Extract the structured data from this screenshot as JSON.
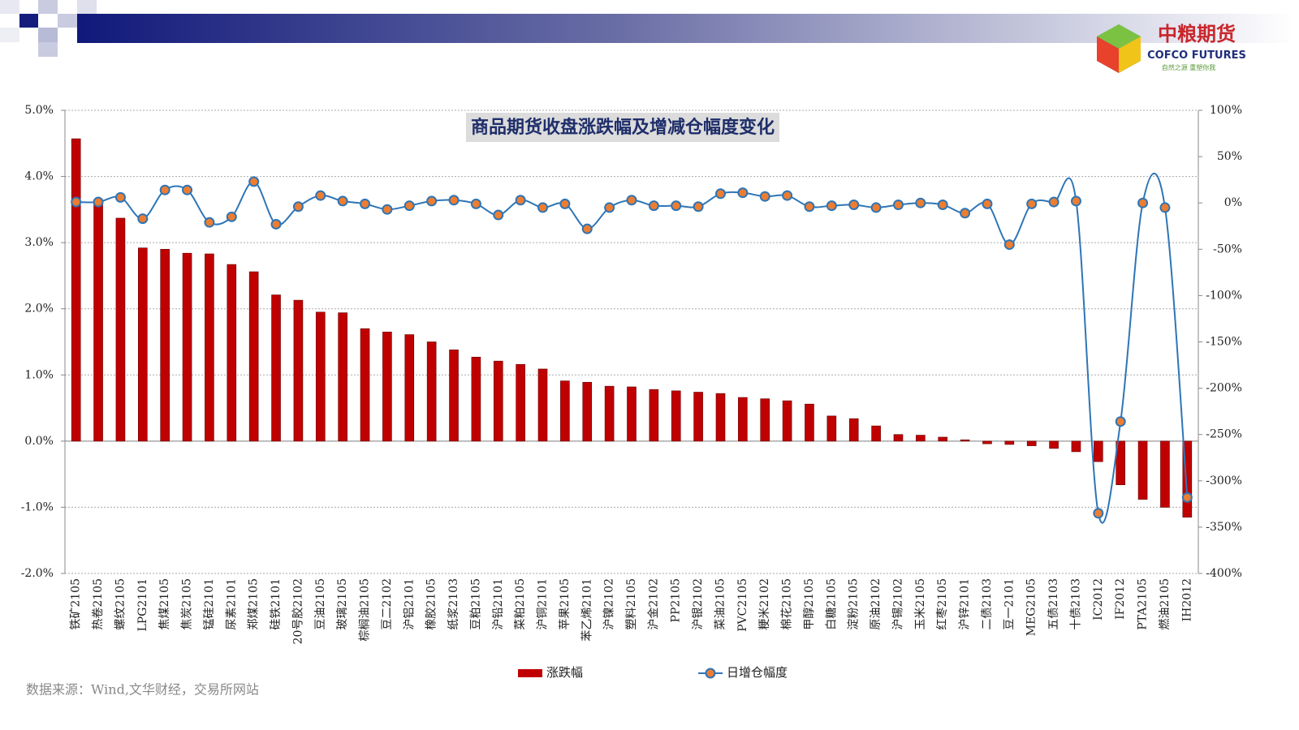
{
  "header": {
    "logo_cn": "中粮期货",
    "logo_en": "COFCO FUTURES",
    "slogan": "自然之源 重塑你我"
  },
  "source": "数据来源：Wind,文华财经，交易所网站",
  "chart_data": {
    "type": "bar",
    "title": "商品期货收盘涨跌幅及增减仓幅度变化",
    "categories": [
      "铁矿2105",
      "热卷2105",
      "螺纹2105",
      "LPG2101",
      "焦煤2105",
      "焦炭2105",
      "锰硅2101",
      "尿素2101",
      "郑煤2105",
      "硅铁2101",
      "20号胶2102",
      "豆油2105",
      "玻璃2105",
      "棕榈油2105",
      "豆二2102",
      "沪铝2101",
      "橡胶2105",
      "纸浆2103",
      "豆粕2105",
      "沪铅2101",
      "菜粕2105",
      "沪铜2101",
      "苹果2105",
      "苯乙烯2101",
      "沪镍2102",
      "塑料2105",
      "沪金2102",
      "PP2105",
      "沪银2102",
      "菜油2105",
      "PVC2105",
      "粳米2102",
      "棉花2105",
      "甲醇2105",
      "白糖2105",
      "淀粉2105",
      "原油2102",
      "沪锡2102",
      "玉米2105",
      "红枣2105",
      "沪锌2101",
      "二债2103",
      "豆一2101",
      "MEG2105",
      "五债2103",
      "十债2103",
      "IC2012",
      "IF2012",
      "PTA2105",
      "燃油2105",
      "IH2012"
    ],
    "series": [
      {
        "name": "涨跌幅",
        "type": "bar",
        "color": "#c00000",
        "values": [
          4.57,
          3.6,
          3.37,
          2.92,
          2.9,
          2.84,
          2.83,
          2.67,
          2.56,
          2.21,
          2.13,
          1.95,
          1.94,
          1.7,
          1.65,
          1.61,
          1.5,
          1.38,
          1.27,
          1.21,
          1.16,
          1.09,
          0.91,
          0.89,
          0.83,
          0.82,
          0.78,
          0.76,
          0.74,
          0.72,
          0.66,
          0.64,
          0.61,
          0.56,
          0.38,
          0.34,
          0.23,
          0.1,
          0.09,
          0.06,
          0.02,
          -0.04,
          -0.05,
          -0.07,
          -0.11,
          -0.16,
          -0.31,
          -0.66,
          -0.88,
          -1.0,
          -1.15
        ]
      },
      {
        "name": "日增仓幅度",
        "type": "line",
        "axis": "y2",
        "color": "#2e75b6",
        "marker_color": "#ed7d31",
        "values": [
          1,
          1,
          6,
          -17,
          14,
          14,
          -21,
          -15,
          23,
          -23,
          -4,
          8,
          2,
          -1,
          -7,
          -3,
          2,
          3,
          -1,
          -13,
          3,
          -5,
          -1,
          -28,
          -5,
          3,
          -3,
          -3,
          -4,
          10,
          11,
          7,
          8,
          -4,
          -3,
          -2,
          -5,
          -2,
          0,
          -2,
          -11,
          -1,
          -45,
          -1,
          1,
          2,
          -335,
          -236,
          0,
          -5,
          -318
        ]
      }
    ],
    "ylim": [
      -2,
      5
    ],
    "yticks": [
      {
        "value": 5,
        "label": "5.0%"
      },
      {
        "value": 4,
        "label": "4.0%"
      },
      {
        "value": 3,
        "label": "3.0%"
      },
      {
        "value": 2,
        "label": "2.0%"
      },
      {
        "value": 1,
        "label": "1.0%"
      },
      {
        "value": 0,
        "label": "0.0%"
      },
      {
        "value": -1,
        "label": "-1.0%"
      },
      {
        "value": -2,
        "label": "-2.0%"
      }
    ],
    "y2lim": [
      -400,
      100
    ],
    "y2ticks": [
      {
        "value": 100,
        "label": "100%"
      },
      {
        "value": 50,
        "label": "50%"
      },
      {
        "value": 0,
        "label": "0%"
      },
      {
        "value": -50,
        "label": "-50%"
      },
      {
        "value": -100,
        "label": "-100%"
      },
      {
        "value": -150,
        "label": "-150%"
      },
      {
        "value": -200,
        "label": "-200%"
      },
      {
        "value": -250,
        "label": "-250%"
      },
      {
        "value": -300,
        "label": "-300%"
      },
      {
        "value": -350,
        "label": "-350%"
      },
      {
        "value": -400,
        "label": "-400%"
      }
    ],
    "grid": true,
    "legend": "bottom"
  }
}
